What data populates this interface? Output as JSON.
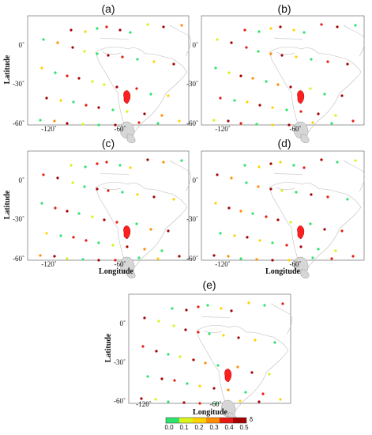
{
  "panels": [
    {
      "title": "(a)"
    },
    {
      "title": "(b)"
    },
    {
      "title": "(c)"
    },
    {
      "title": "(d)"
    },
    {
      "title": "(e)"
    }
  ],
  "axes": {
    "ylabel": "Latitude",
    "xlabel": "Longitude",
    "y_ticks": [
      "0˚",
      "-30˚",
      "-60˚"
    ],
    "x_ticks": [
      "-120˚",
      "-60˚"
    ]
  },
  "colorbar": {
    "tick_labels": [
      "0.0",
      "0.1",
      "0.2",
      "0.3",
      "0.4",
      "0.5"
    ],
    "symbol": "δ",
    "colors": [
      "#2ee36c",
      "#d9f21a",
      "#ffd200",
      "#ff8c00",
      "#e51b12",
      "#a50000"
    ]
  },
  "colors": {
    "map_line": "#b9b9b9",
    "frame": "#555555",
    "epicentre": "#ff1f1f"
  }
}
